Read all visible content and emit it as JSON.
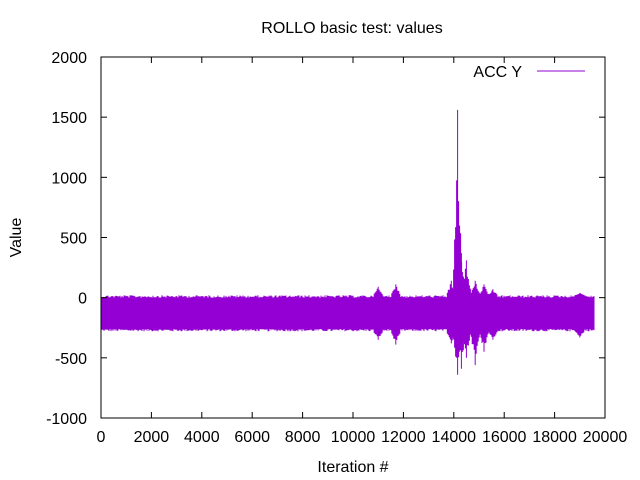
{
  "chart_data": {
    "type": "line",
    "title": "ROLLO  basic test: values",
    "xlabel": "Iteration #",
    "ylabel": "Value",
    "xlim": [
      0,
      20000
    ],
    "ylim": [
      -1000,
      2000
    ],
    "x_ticks": [
      0,
      2000,
      4000,
      6000,
      8000,
      10000,
      12000,
      14000,
      16000,
      18000,
      20000
    ],
    "x_tick_labels": [
      "0",
      "2000",
      "4000",
      "6000",
      "8000",
      "10000",
      "12000",
      "14000",
      "16000",
      "18000",
      "20000"
    ],
    "y_ticks": [
      -1000,
      -500,
      0,
      500,
      1000,
      1500,
      2000
    ],
    "y_tick_labels": [
      "-1000",
      "-500",
      "0",
      "500",
      "1000",
      "1500",
      "2000"
    ],
    "grid": false,
    "legend_position": "top-right",
    "series": [
      {
        "name": "ACC Y",
        "color": "#9400d3",
        "x_range": [
          0,
          19600
        ],
        "baseline_band": [
          -280,
          20
        ],
        "notable_points": [
          {
            "x": 11000,
            "min": -350,
            "max": 90
          },
          {
            "x": 11700,
            "min": -390,
            "max": 110
          },
          {
            "x": 13900,
            "min": -380,
            "max": 140
          },
          {
            "x": 14150,
            "min": -640,
            "max": 1560
          },
          {
            "x": 14300,
            "min": -590,
            "max": 370
          },
          {
            "x": 14500,
            "min": -500,
            "max": 310
          },
          {
            "x": 14850,
            "min": -560,
            "max": 140
          },
          {
            "x": 15200,
            "min": -450,
            "max": 110
          },
          {
            "x": 15550,
            "min": -350,
            "max": 70
          },
          {
            "x": 19000,
            "min": -330,
            "max": 40
          }
        ]
      }
    ]
  }
}
